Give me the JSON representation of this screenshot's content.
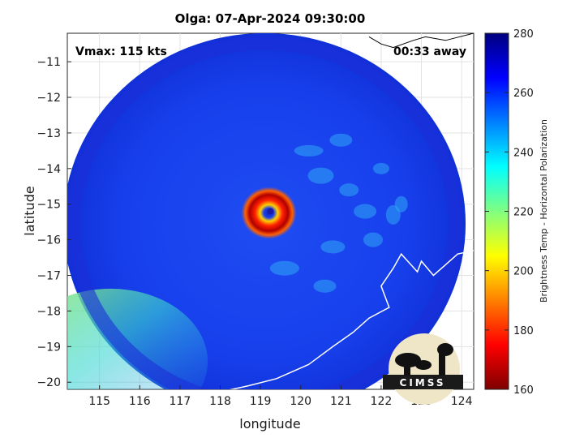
{
  "chart_data": {
    "type": "heatmap",
    "title": "Olga: 07-Apr-2024 09:30:00",
    "xlabel": "longitude",
    "ylabel": "latitude",
    "xlim": [
      114.2,
      124.3
    ],
    "ylim": [
      -20.2,
      -10.2
    ],
    "xticks": [
      "115",
      "116",
      "117",
      "118",
      "119",
      "120",
      "121",
      "122",
      "123",
      "124"
    ],
    "yticks": [
      "-11",
      "-12",
      "-13",
      "-14",
      "-15",
      "-16",
      "-17",
      "-18",
      "-19",
      "-20"
    ],
    "grid": true,
    "annotations": {
      "vmax": "Vmax: 115 kts",
      "away": "00:33 away"
    },
    "storm_center": {
      "lon": 119.25,
      "lat": -15.2
    },
    "swath_center": {
      "lon": 119.1,
      "lat": -15.55
    },
    "colorbar": {
      "label": "Brightness Temp - Horizontal Polarization",
      "range": [
        160,
        280
      ],
      "ticks": [
        "280",
        "260",
        "240",
        "220",
        "200",
        "180",
        "160"
      ],
      "colormap": [
        "#7f0000",
        "#ff0000",
        "#ff8000",
        "#ffff00",
        "#80ff80",
        "#00ffff",
        "#0080ff",
        "#0000ff",
        "#00007f"
      ]
    },
    "logo_text": "CIMSS"
  }
}
